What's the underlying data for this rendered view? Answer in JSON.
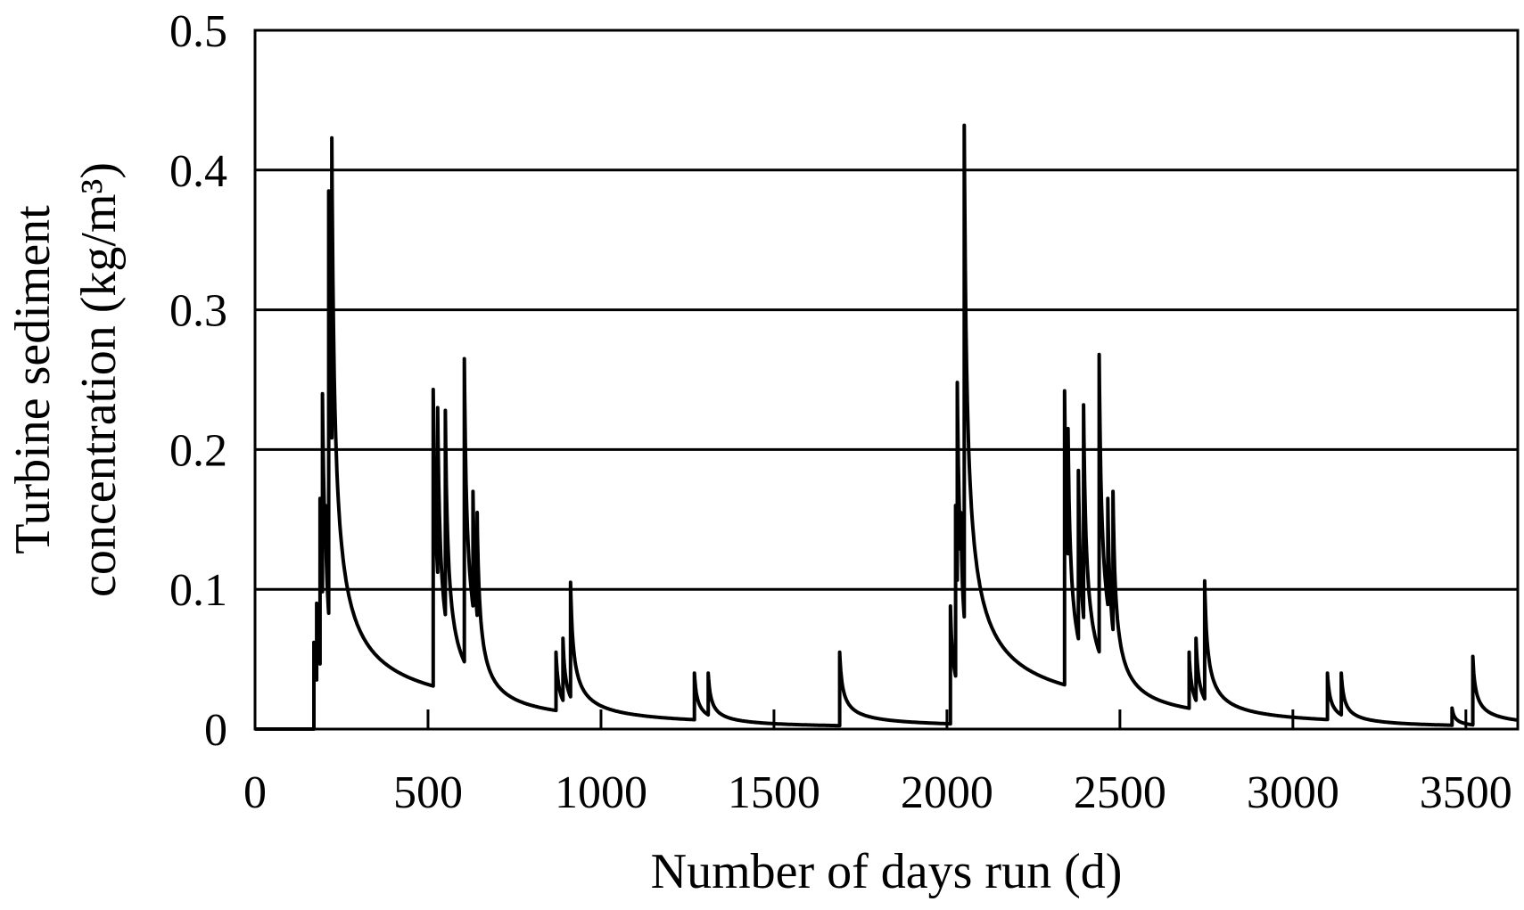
{
  "chart_data": {
    "type": "line",
    "title": "",
    "xlabel": "Number of days run (d)",
    "ylabel_line1": "Turbine sediment",
    "ylabel_line2": "concentration (kg/m³)",
    "xlim": [
      0,
      3650
    ],
    "ylim": [
      0,
      0.5
    ],
    "x_ticks": [
      0,
      500,
      1000,
      1500,
      2000,
      2500,
      3000,
      3500
    ],
    "x_tick_labels": [
      "0",
      "500",
      "1000",
      "1500",
      "2000",
      "2500",
      "3000",
      "3500"
    ],
    "y_ticks": [
      0,
      0.1,
      0.2,
      0.3,
      0.4,
      0.5
    ],
    "y_tick_labels": [
      "0",
      "0.1",
      "0.2",
      "0.3",
      "0.4",
      "0.5"
    ],
    "grid": "horizontal",
    "line_color": "#000000",
    "series": [
      {
        "name": "Turbine sediment concentration",
        "events": [
          [
            170,
            0.062
          ],
          [
            178,
            0.09
          ],
          [
            188,
            0.165
          ],
          [
            195,
            0.24
          ],
          [
            203,
            0.16
          ],
          [
            213,
            0.385
          ],
          [
            222,
            0.423
          ],
          [
            515,
            0.243
          ],
          [
            528,
            0.23
          ],
          [
            550,
            0.228
          ],
          [
            605,
            0.265
          ],
          [
            630,
            0.17
          ],
          [
            642,
            0.155
          ],
          [
            870,
            0.055
          ],
          [
            890,
            0.065
          ],
          [
            912,
            0.105
          ],
          [
            1270,
            0.04
          ],
          [
            1310,
            0.04
          ],
          [
            1690,
            0.055
          ],
          [
            2010,
            0.088
          ],
          [
            2025,
            0.16
          ],
          [
            2030,
            0.248
          ],
          [
            2040,
            0.155
          ],
          [
            2050,
            0.432
          ],
          [
            2340,
            0.242
          ],
          [
            2350,
            0.215
          ],
          [
            2380,
            0.185
          ],
          [
            2395,
            0.232
          ],
          [
            2440,
            0.268
          ],
          [
            2465,
            0.165
          ],
          [
            2480,
            0.17
          ],
          [
            2700,
            0.055
          ],
          [
            2720,
            0.065
          ],
          [
            2745,
            0.106
          ],
          [
            3100,
            0.04
          ],
          [
            3140,
            0.04
          ],
          [
            3460,
            0.015
          ],
          [
            3520,
            0.052
          ]
        ],
        "decay_period": 1825,
        "y_start": 0
      }
    ]
  }
}
